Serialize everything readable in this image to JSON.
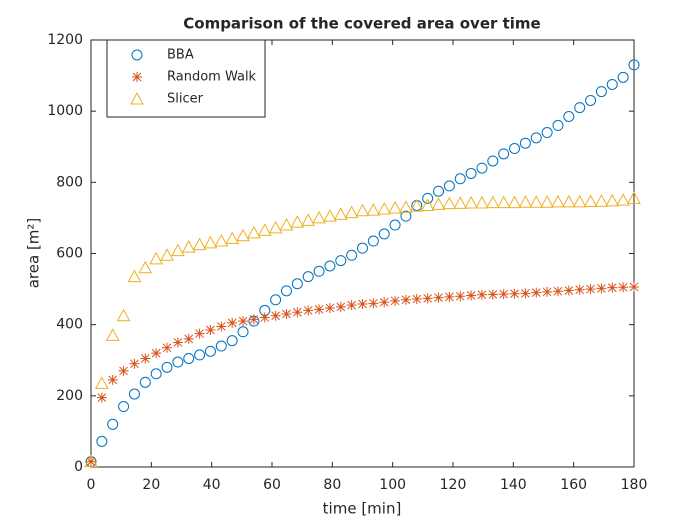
{
  "chart_data": {
    "type": "scatter",
    "title": "Comparison of the covered area over time",
    "x_label": "time [min]",
    "y_label": "area [m²]",
    "x": [
      0,
      3.6,
      7.2,
      10.8,
      14.4,
      18,
      21.6,
      25.2,
      28.8,
      32.4,
      36,
      39.6,
      43.2,
      46.8,
      50.4,
      54,
      57.6,
      61.2,
      64.8,
      68.4,
      72,
      75.6,
      79.2,
      82.8,
      86.4,
      90,
      93.6,
      97.2,
      100.8,
      104.4,
      108,
      111.6,
      115.2,
      118.8,
      122.4,
      126,
      129.6,
      133.2,
      136.8,
      140.4,
      144,
      147.6,
      151.2,
      154.8,
      158.4,
      162,
      165.6,
      169.2,
      172.8,
      176.4,
      180
    ],
    "series": [
      {
        "name": "BBA",
        "color": "#0072BD",
        "marker": "circle",
        "values": [
          15,
          72,
          120,
          170,
          205,
          238,
          262,
          280,
          295,
          305,
          315,
          325,
          340,
          355,
          380,
          410,
          440,
          470,
          495,
          515,
          535,
          550,
          565,
          580,
          595,
          615,
          635,
          655,
          680,
          705,
          735,
          755,
          775,
          790,
          810,
          825,
          840,
          860,
          880,
          895,
          910,
          925,
          940,
          960,
          985,
          1010,
          1030,
          1055,
          1075,
          1095,
          1130
        ]
      },
      {
        "name": "Random Walk",
        "color": "#D95319",
        "marker": "asterisk",
        "values": [
          15,
          195,
          245,
          270,
          290,
          305,
          320,
          335,
          350,
          360,
          375,
          385,
          395,
          405,
          410,
          415,
          420,
          425,
          430,
          435,
          440,
          443,
          447,
          450,
          455,
          458,
          460,
          463,
          467,
          470,
          472,
          474,
          476,
          478,
          480,
          482,
          484,
          485,
          486,
          487,
          488,
          490,
          492,
          494,
          496,
          498,
          500,
          502,
          504,
          505,
          506
        ]
      },
      {
        "name": "Slicer",
        "color": "#EDB120",
        "marker": "triangle",
        "values": [
          15,
          235,
          370,
          425,
          535,
          560,
          585,
          595,
          608,
          618,
          625,
          630,
          635,
          642,
          650,
          658,
          665,
          672,
          680,
          688,
          693,
          700,
          705,
          710,
          715,
          720,
          722,
          725,
          728,
          730,
          733,
          735,
          738,
          740,
          741,
          742,
          742,
          743,
          743,
          743,
          744,
          744,
          744,
          745,
          745,
          745,
          746,
          747,
          748,
          750,
          755
        ]
      }
    ],
    "xlim": [
      0,
      180
    ],
    "xticks": [
      0,
      20,
      40,
      60,
      80,
      100,
      120,
      140,
      160,
      180
    ],
    "ylim": [
      0,
      1200
    ],
    "yticks": [
      0,
      200,
      400,
      600,
      800,
      1000,
      1200
    ],
    "legend": "top-left"
  }
}
